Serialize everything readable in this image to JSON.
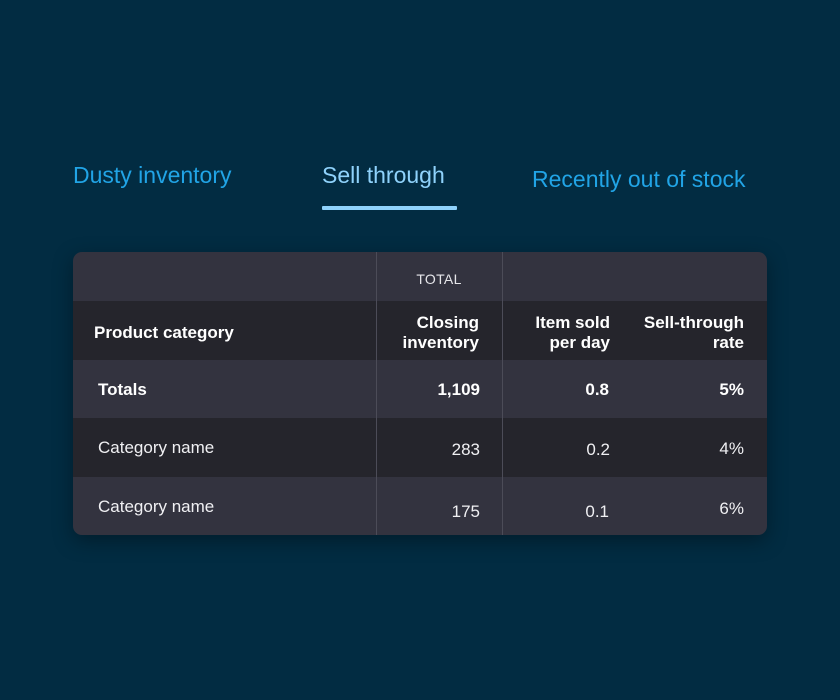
{
  "tabs": [
    {
      "label": "Dusty inventory",
      "active": false
    },
    {
      "label": "Sell through",
      "active": true
    },
    {
      "label": "Recently out of stock",
      "active": false
    }
  ],
  "table": {
    "group_label": "TOTAL",
    "headers": {
      "category": "Product category",
      "closing_line1": "Closing",
      "closing_line2": "inventory",
      "sold_line1": "Item sold",
      "sold_line2": "per day",
      "rate_line1": "Sell-through",
      "rate_line2": "rate"
    },
    "totals": {
      "label": "Totals",
      "closing": "1,109",
      "sold": "0.8",
      "rate": "5%"
    },
    "rows": [
      {
        "category": "Category name",
        "closing": "283",
        "sold": "0.2",
        "rate": "4%"
      },
      {
        "category": "Category name",
        "closing": "175",
        "sold": "0.1",
        "rate": "6%"
      }
    ]
  },
  "colors": {
    "background": "#022c42",
    "tab_inactive": "#21a4e6",
    "tab_active": "#8fd2fb",
    "row_light": "#33333f",
    "row_dark": "#25252c"
  }
}
